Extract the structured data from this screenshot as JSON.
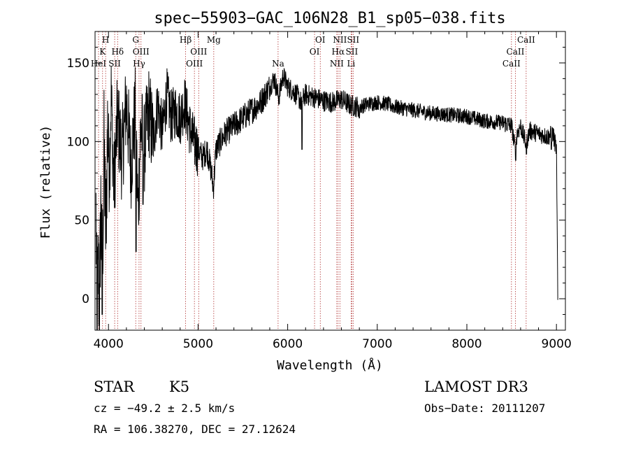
{
  "chart_data": {
    "type": "line",
    "title": "spec−55903−GAC_106N28_B1_sp05−038.fits",
    "xlabel": "Wavelength (Å)",
    "ylabel": "Flux (relative)",
    "xlim": [
      3850,
      9100
    ],
    "ylim": [
      -20,
      170
    ],
    "xticks": [
      4000,
      5000,
      6000,
      7000,
      8000,
      9000
    ],
    "yticks": [
      0,
      50,
      100,
      150
    ],
    "grid": false,
    "series_color": "#000000",
    "line_marker_color": "#b03030",
    "spectrum_anchors": [
      [
        3860,
        55
      ],
      [
        3870,
        -15
      ],
      [
        3885,
        20
      ],
      [
        3900,
        -5
      ],
      [
        3915,
        60
      ],
      [
        3930,
        10
      ],
      [
        3950,
        95
      ],
      [
        3970,
        40
      ],
      [
        3990,
        110
      ],
      [
        4010,
        80
      ],
      [
        4030,
        130
      ],
      [
        4060,
        70
      ],
      [
        4100,
        115
      ],
      [
        4150,
        90
      ],
      [
        4200,
        125
      ],
      [
        4250,
        85
      ],
      [
        4300,
        120
      ],
      [
        4330,
        55
      ],
      [
        4360,
        110
      ],
      [
        4400,
        95
      ],
      [
        4450,
        120
      ],
      [
        4500,
        100
      ],
      [
        4550,
        125
      ],
      [
        4600,
        105
      ],
      [
        4650,
        130
      ],
      [
        4700,
        115
      ],
      [
        4750,
        120
      ],
      [
        4800,
        115
      ],
      [
        4850,
        125
      ],
      [
        4900,
        110
      ],
      [
        4950,
        100
      ],
      [
        5000,
        95
      ],
      [
        5050,
        90
      ],
      [
        5100,
        95
      ],
      [
        5150,
        80
      ],
      [
        5170,
        70
      ],
      [
        5200,
        95
      ],
      [
        5300,
        105
      ],
      [
        5400,
        110
      ],
      [
        5500,
        115
      ],
      [
        5600,
        120
      ],
      [
        5700,
        125
      ],
      [
        5800,
        135
      ],
      [
        5850,
        140
      ],
      [
        5900,
        128
      ],
      [
        5950,
        142
      ],
      [
        6000,
        135
      ],
      [
        6100,
        130
      ],
      [
        6150,
        125
      ],
      [
        6200,
        130
      ],
      [
        6300,
        128
      ],
      [
        6400,
        126
      ],
      [
        6500,
        125
      ],
      [
        6600,
        127
      ],
      [
        6700,
        123
      ],
      [
        6800,
        122
      ],
      [
        6900,
        124
      ],
      [
        7000,
        125
      ],
      [
        7100,
        124
      ],
      [
        7200,
        122
      ],
      [
        7400,
        120
      ],
      [
        7600,
        118
      ],
      [
        7800,
        117
      ],
      [
        8000,
        116
      ],
      [
        8200,
        113
      ],
      [
        8400,
        112
      ],
      [
        8500,
        110
      ],
      [
        8540,
        95
      ],
      [
        8560,
        105
      ],
      [
        8600,
        110
      ],
      [
        8662,
        98
      ],
      [
        8700,
        107
      ],
      [
        8800,
        105
      ],
      [
        8900,
        103
      ],
      [
        8960,
        105
      ],
      [
        9000,
        95
      ],
      [
        9015,
        0
      ]
    ],
    "dips": [
      [
        3872,
        -20
      ],
      [
        3930,
        -10
      ],
      [
        4308,
        30
      ],
      [
        4386,
        60
      ],
      [
        5175,
        72
      ],
      [
        6160,
        95
      ],
      [
        6800,
        115
      ],
      [
        8545,
        88
      ],
      [
        8664,
        92
      ],
      [
        8942,
        95
      ]
    ],
    "lines": [
      {
        "label": "H",
        "x": 3968,
        "row": 0
      },
      {
        "label": "K",
        "x": 3934,
        "row": 1
      },
      {
        "label": "HeI",
        "x": 3889,
        "row": 2
      },
      {
        "label": "Hδ",
        "x": 4102,
        "row": 1
      },
      {
        "label": "SII",
        "x": 4069,
        "row": 2
      },
      {
        "label": "G",
        "x": 4304,
        "row": 0
      },
      {
        "label": "OIII",
        "x": 4363,
        "row": 1
      },
      {
        "label": "Hγ",
        "x": 4341,
        "row": 2
      },
      {
        "label": "Hβ",
        "x": 4861,
        "row": 0
      },
      {
        "label": "OIII",
        "x": 5007,
        "row": 1
      },
      {
        "label": "OIII",
        "x": 4959,
        "row": 2
      },
      {
        "label": "Mg",
        "x": 5175,
        "row": 0
      },
      {
        "label": "Na",
        "x": 5893,
        "row": 2
      },
      {
        "label": "OI",
        "x": 6364,
        "row": 0
      },
      {
        "label": "OI",
        "x": 6300,
        "row": 1
      },
      {
        "label": "NII",
        "x": 6583,
        "row": 0
      },
      {
        "label": "Hα",
        "x": 6563,
        "row": 1
      },
      {
        "label": "NII",
        "x": 6548,
        "row": 2
      },
      {
        "label": "SII",
        "x": 6731,
        "row": 0
      },
      {
        "label": "SII",
        "x": 6716,
        "row": 1
      },
      {
        "label": "Li",
        "x": 6708,
        "row": 2
      },
      {
        "label": "CaII",
        "x": 8662,
        "row": 0
      },
      {
        "label": "CaII",
        "x": 8542,
        "row": 1
      },
      {
        "label": "CaII",
        "x": 8498,
        "row": 2
      }
    ]
  },
  "info": {
    "class": "STAR",
    "subclass": "K5",
    "survey": "LAMOST DR3",
    "cz": "cz = −49.2 ± 2.5 km/s",
    "obs_date": "Obs−Date: 20111207",
    "coords": "RA = 106.38270, DEC =  27.12624"
  }
}
